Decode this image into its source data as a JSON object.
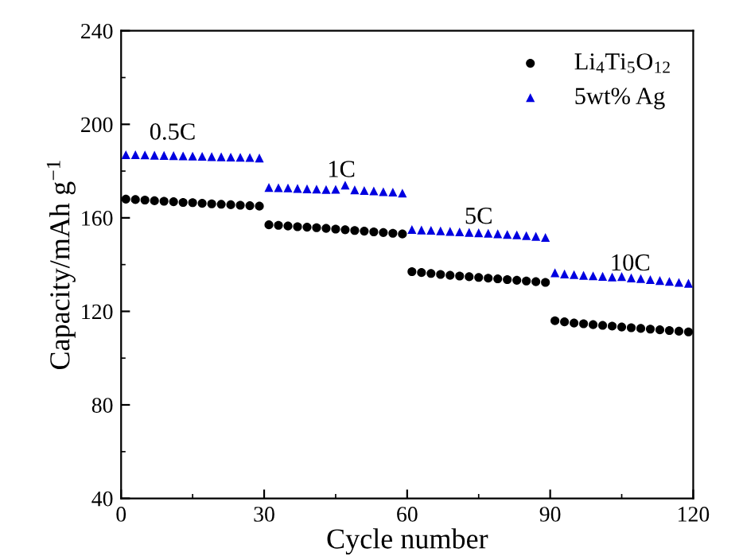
{
  "chart_data": {
    "type": "scatter",
    "xlabel": "Cycle number",
    "ylabel": "Capacity/mAh g$^{−1}$",
    "xlim": [
      0,
      120
    ],
    "ylim": [
      40,
      240
    ],
    "xticks": [
      0,
      {
        "value": 15,
        "label": null
      },
      30,
      {
        "value": 45,
        "label": null
      },
      60,
      {
        "value": 75,
        "label": null
      },
      90,
      {
        "value": 105,
        "label": null
      },
      120
    ],
    "yticks": [
      40,
      {
        "value": 60,
        "label": null
      },
      80,
      {
        "value": 100,
        "label": null
      },
      120,
      {
        "value": 140,
        "label": null
      },
      160,
      {
        "value": 180,
        "label": null
      },
      200,
      {
        "value": 220,
        "label": null
      },
      240
    ],
    "x": [
      1,
      3,
      5,
      7,
      9,
      11,
      13,
      15,
      17,
      19,
      21,
      23,
      25,
      27,
      29,
      31,
      33,
      35,
      37,
      39,
      41,
      43,
      45,
      47,
      49,
      51,
      53,
      55,
      57,
      59,
      61,
      63,
      65,
      67,
      69,
      71,
      73,
      75,
      77,
      79,
      81,
      83,
      85,
      87,
      89,
      91,
      93,
      95,
      97,
      99,
      101,
      103,
      105,
      107,
      109,
      111,
      113,
      115,
      117,
      119
    ],
    "legend": "top right",
    "series": [
      {
        "name": "Li$_{4}$Ti$_{5}$O$_{12}$",
        "color": "#000000",
        "marker": "circle",
        "values": [
          168,
          167.8,
          167.6,
          167.3,
          167.1,
          166.9,
          166.6,
          166.5,
          166.2,
          166,
          165.8,
          165.6,
          165.4,
          165.2,
          165,
          157,
          156.8,
          156.5,
          156.2,
          156,
          155.8,
          155.5,
          155.2,
          154.9,
          154.6,
          154.3,
          154,
          153.7,
          153.4,
          153.1,
          137,
          136.6,
          136.2,
          135.8,
          135.4,
          135.1,
          134.8,
          134.5,
          134.2,
          133.9,
          133.6,
          133.3,
          133,
          132.7,
          132.4,
          116,
          115.5,
          115,
          114.7,
          114.3,
          114,
          113.7,
          113.3,
          113,
          112.7,
          112.4,
          112.1,
          111.8,
          111.5,
          111.2
        ]
      },
      {
        "name": "5wt% Ag",
        "color": "#0000e0",
        "marker": "triangle",
        "values": [
          187,
          187,
          186.9,
          186.8,
          186.7,
          186.6,
          186.5,
          186.4,
          186.3,
          186.2,
          186.1,
          186,
          185.9,
          185.8,
          185.6,
          173,
          172.9,
          172.8,
          172.6,
          172.4,
          172.3,
          172.1,
          172.2,
          174,
          172,
          171.7,
          171.5,
          171.2,
          171,
          170.6,
          155,
          154.8,
          154.7,
          154.4,
          154.2,
          154,
          153.8,
          153.6,
          153.4,
          153.2,
          152.9,
          152.7,
          152.4,
          152.1,
          151.6,
          136.5,
          136,
          135.7,
          135.4,
          135.2,
          135,
          134.7,
          134.9,
          134.3,
          134,
          133.6,
          133.2,
          132.8,
          132.4,
          132
        ]
      }
    ],
    "annotations": [
      "0.5C",
      "1C",
      "5C",
      "10C"
    ]
  }
}
